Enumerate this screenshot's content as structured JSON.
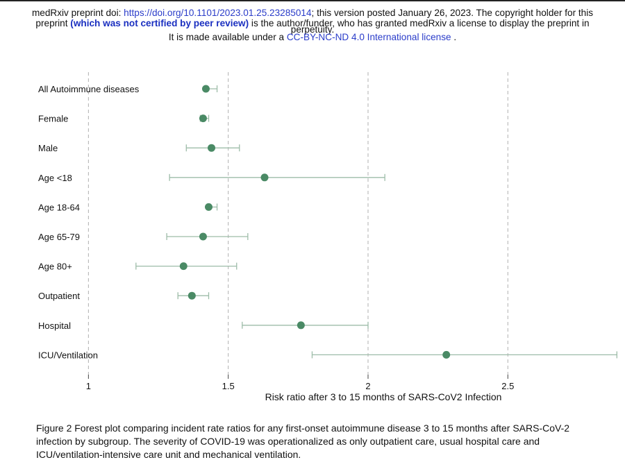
{
  "header": {
    "line1_prefix": "medRxiv preprint doi: ",
    "doi_link": "https://doi.org/10.1101/2023.01.25.23285014",
    "line1_suffix": "; this version posted January 26, 2023. The copyright holder for this",
    "line2_prefix": "preprint ",
    "peer_review": "(which was not certified by peer review)",
    "line2_suffix": " is the author/funder, who has granted medRxiv a license to display the preprint in",
    "line3": "perpetuity.",
    "line4_prefix": "It is made available under a ",
    "license_link": "CC-BY-NC-ND 4.0 International license",
    "line4_suffix": " ."
  },
  "colors": {
    "point": "#4a8a65",
    "ci_line": "#9dbca8",
    "grid": "#b0b0b0",
    "link": "#2a3cc9"
  },
  "chart_data": {
    "type": "forest",
    "xlabel": "Risk ratio after 3 to 15 months of SARS-CoV2 Infection",
    "x_ticks": [
      1,
      1.5,
      2,
      2.5
    ],
    "x_tick_labels": [
      "1",
      "1.5",
      "2",
      "2.5"
    ],
    "xlim": [
      0.783,
      2.919
    ],
    "reference_lines": [
      1,
      1.5,
      2,
      2.5
    ],
    "rows": [
      {
        "label": "All Autoimmune diseases",
        "estimate": 1.42,
        "lower": 1.42,
        "upper": 1.46
      },
      {
        "label": "Female",
        "estimate": 1.41,
        "lower": 1.4,
        "upper": 1.43
      },
      {
        "label": "Male",
        "estimate": 1.44,
        "lower": 1.35,
        "upper": 1.54
      },
      {
        "label": "Age <18",
        "estimate": 1.63,
        "lower": 1.29,
        "upper": 2.06
      },
      {
        "label": "Age 18-64",
        "estimate": 1.43,
        "lower": 1.43,
        "upper": 1.46
      },
      {
        "label": "Age 65-79",
        "estimate": 1.41,
        "lower": 1.28,
        "upper": 1.57
      },
      {
        "label": "Age 80+",
        "estimate": 1.34,
        "lower": 1.17,
        "upper": 1.53
      },
      {
        "label": "Outpatient",
        "estimate": 1.37,
        "lower": 1.32,
        "upper": 1.43
      },
      {
        "label": "Hospital",
        "estimate": 1.76,
        "lower": 1.55,
        "upper": 2.0
      },
      {
        "label": "ICU/Ventilation",
        "estimate": 2.28,
        "lower": 1.8,
        "upper": 2.89
      }
    ]
  },
  "caption": {
    "text": "Figure 2 Forest plot comparing incident rate ratios for any first-onset autoimmune disease 3 to 15 months after SARS-CoV-2 infection by subgroup. The severity of COVID-19 was operationalized as only outpatient care, usual hospital care and ICU/ventilation-intensive care unit and mechanical ventilation."
  }
}
